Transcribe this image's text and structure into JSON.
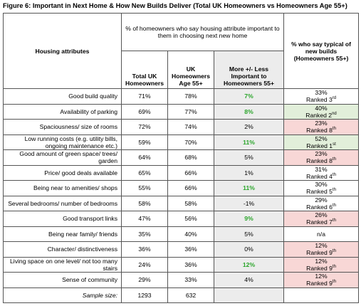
{
  "title": "Figure 6:  Important in Next Home & How New Builds Deliver (Total UK Homeowners vs Homeowners Age 55+)",
  "table": {
    "headers": {
      "attribute": "Housing attributes",
      "group": "% of homeowners who say housing attribute important to them in choosing next new home",
      "total": "Total UK Homeowners",
      "age55": "UK Homeowners Age 55+",
      "diff": "More +/- Less Important to Homeowners 55+",
      "typical": "% who say typical of new builds (Homeowners 55+)"
    },
    "rows": [
      {
        "attribute": "Good build quality",
        "total": "71%",
        "age55": "78%",
        "diff": "7%",
        "diff_highlight": true,
        "typical": "33%",
        "rank": "Ranked 3",
        "rank_suffix": "rd",
        "typical_color": null
      },
      {
        "attribute": "Availability of parking",
        "total": "69%",
        "age55": "77%",
        "diff": "8%",
        "diff_highlight": true,
        "typical": "40%",
        "rank": "Ranked 2",
        "rank_suffix": "nd",
        "typical_color": "green"
      },
      {
        "attribute": "Spaciousness/ size of rooms",
        "total": "72%",
        "age55": "74%",
        "diff": "2%",
        "diff_highlight": false,
        "typical": "23%",
        "rank": "Ranked 8",
        "rank_suffix": "th",
        "typical_color": "red"
      },
      {
        "attribute": "Low running costs (e.g. utility bills, ongoing maintenance etc.)",
        "total": "59%",
        "age55": "70%",
        "diff": "11%",
        "diff_highlight": true,
        "typical": "52%",
        "rank": "Ranked 1",
        "rank_suffix": "st",
        "typical_color": "green"
      },
      {
        "attribute": "Good amount of green space/ trees/ garden",
        "total": "64%",
        "age55": "68%",
        "diff": "5%",
        "diff_highlight": false,
        "typical": "23%",
        "rank": "Ranked 8",
        "rank_suffix": "th",
        "typical_color": "red"
      },
      {
        "attribute": "Price/ good deals available",
        "total": "65%",
        "age55": "66%",
        "diff": "1%",
        "diff_highlight": false,
        "typical": "31%",
        "rank": "Ranked 4",
        "rank_suffix": "th",
        "typical_color": null
      },
      {
        "attribute": "Being near to amenities/ shops",
        "total": "55%",
        "age55": "66%",
        "diff": "11%",
        "diff_highlight": true,
        "typical": "30%",
        "rank": "Ranked 5",
        "rank_suffix": "th",
        "typical_color": null
      },
      {
        "attribute": "Several bedrooms/ number of bedrooms",
        "total": "58%",
        "age55": "58%",
        "diff": "-1%",
        "diff_highlight": false,
        "typical": "29%",
        "rank": "Ranked 6",
        "rank_suffix": "th",
        "typical_color": null
      },
      {
        "attribute": "Good transport links",
        "total": "47%",
        "age55": "56%",
        "diff": "9%",
        "diff_highlight": true,
        "typical": "26%",
        "rank": "Ranked 7",
        "rank_suffix": "th",
        "typical_color": "red"
      },
      {
        "attribute": "Being near family/ friends",
        "total": "35%",
        "age55": "40%",
        "diff": "5%",
        "diff_highlight": false,
        "typical": "n/a",
        "rank": null,
        "rank_suffix": null,
        "typical_color": null
      },
      {
        "attribute": "Character/ distinctiveness",
        "total": "36%",
        "age55": "36%",
        "diff": "0%",
        "diff_highlight": false,
        "typical": "12%",
        "rank": "Ranked 9",
        "rank_suffix": "th",
        "typical_color": "red"
      },
      {
        "attribute": "Living space on one level/ not too many stairs",
        "total": "24%",
        "age55": "36%",
        "diff": "12%",
        "diff_highlight": true,
        "typical": "12%",
        "rank": "Ranked 9",
        "rank_suffix": "th",
        "typical_color": "red"
      },
      {
        "attribute": "Sense of community",
        "total": "29%",
        "age55": "33%",
        "diff": "4%",
        "diff_highlight": false,
        "typical": "12%",
        "rank": "Ranked 9",
        "rank_suffix": "th",
        "typical_color": "red"
      }
    ],
    "sample": {
      "label": "Sample size:",
      "total": "1293",
      "age55": "632"
    }
  }
}
